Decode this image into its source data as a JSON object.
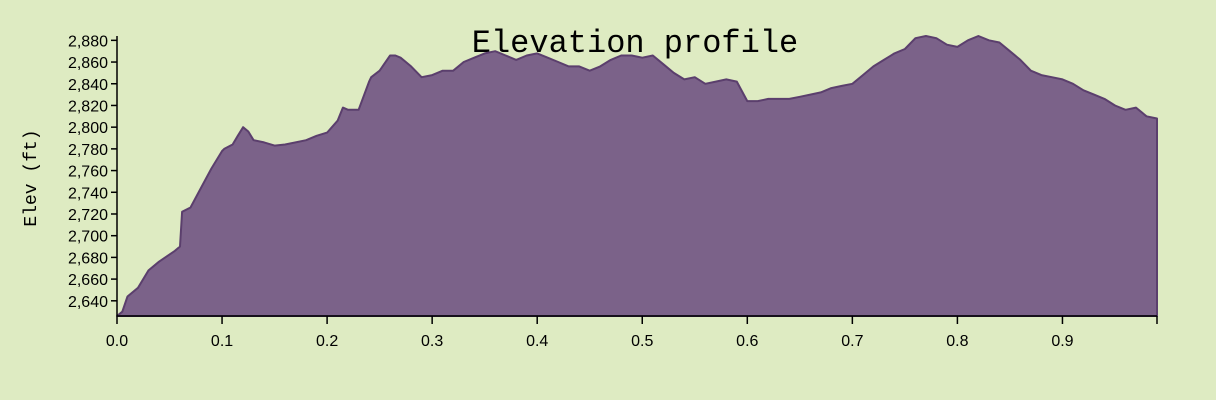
{
  "chart_data": {
    "type": "area",
    "title": "Elevation profile",
    "xlabel": "",
    "ylabel": "Elev (ft)",
    "xlim": [
      0.0,
      0.99
    ],
    "ylim": [
      2626,
      2884
    ],
    "x_ticks": [
      "0.0",
      "0.1",
      "0.2",
      "0.3",
      "0.4",
      "0.5",
      "0.6",
      "0.7",
      "0.8",
      "0.9"
    ],
    "y_ticks": [
      "2,640",
      "2,660",
      "2,680",
      "2,700",
      "2,720",
      "2,740",
      "2,760",
      "2,780",
      "2,800",
      "2,820",
      "2,840",
      "2,860",
      "2,880"
    ],
    "grid": false,
    "colors": {
      "fill": "#7b6289",
      "stroke": "#5b3f6d",
      "background": "#deebc2"
    },
    "x": [
      0.0,
      0.005,
      0.01,
      0.02,
      0.03,
      0.04,
      0.055,
      0.06,
      0.062,
      0.07,
      0.08,
      0.09,
      0.1,
      0.102,
      0.11,
      0.115,
      0.12,
      0.125,
      0.13,
      0.14,
      0.15,
      0.16,
      0.17,
      0.18,
      0.19,
      0.2,
      0.21,
      0.215,
      0.22,
      0.23,
      0.24,
      0.242,
      0.25,
      0.26,
      0.265,
      0.27,
      0.28,
      0.29,
      0.3,
      0.31,
      0.32,
      0.33,
      0.34,
      0.35,
      0.36,
      0.37,
      0.38,
      0.39,
      0.4,
      0.41,
      0.42,
      0.43,
      0.44,
      0.45,
      0.46,
      0.47,
      0.48,
      0.49,
      0.5,
      0.51,
      0.52,
      0.53,
      0.54,
      0.55,
      0.56,
      0.57,
      0.58,
      0.59,
      0.6,
      0.61,
      0.62,
      0.63,
      0.64,
      0.65,
      0.66,
      0.67,
      0.68,
      0.69,
      0.7,
      0.71,
      0.72,
      0.73,
      0.74,
      0.75,
      0.76,
      0.77,
      0.78,
      0.79,
      0.8,
      0.81,
      0.82,
      0.83,
      0.84,
      0.85,
      0.86,
      0.87,
      0.88,
      0.89,
      0.9,
      0.91,
      0.92,
      0.93,
      0.94,
      0.95,
      0.96,
      0.97,
      0.98,
      0.99
    ],
    "y": [
      2626,
      2630,
      2644,
      2652,
      2668,
      2676,
      2686,
      2690,
      2722,
      2726,
      2744,
      2762,
      2778,
      2780,
      2784,
      2792,
      2800,
      2796,
      2788,
      2786,
      2783,
      2784,
      2786,
      2788,
      2792,
      2795,
      2806,
      2818,
      2816,
      2816,
      2842,
      2846,
      2852,
      2866,
      2866,
      2864,
      2856,
      2846,
      2848,
      2852,
      2852,
      2860,
      2864,
      2868,
      2870,
      2866,
      2862,
      2866,
      2868,
      2864,
      2860,
      2856,
      2856,
      2852,
      2856,
      2862,
      2866,
      2866,
      2864,
      2866,
      2858,
      2850,
      2844,
      2846,
      2840,
      2842,
      2844,
      2842,
      2824,
      2824,
      2826,
      2826,
      2826,
      2828,
      2830,
      2832,
      2836,
      2838,
      2840,
      2848,
      2856,
      2862,
      2868,
      2872,
      2882,
      2884,
      2882,
      2876,
      2874,
      2880,
      2884,
      2880,
      2878,
      2870,
      2862,
      2852,
      2848,
      2846,
      2844,
      2840,
      2834,
      2830,
      2826,
      2820,
      2816,
      2818,
      2810,
      2808
    ]
  }
}
